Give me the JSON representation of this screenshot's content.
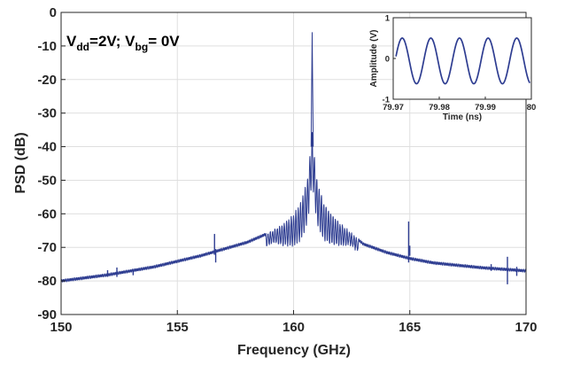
{
  "chart_data": [
    {
      "type": "line",
      "xlabel": "Frequency (GHz)",
      "ylabel": "PSD (dB)",
      "xlim": [
        150,
        170
      ],
      "ylim": [
        -90,
        0
      ],
      "xticks": [
        150,
        155,
        160,
        165,
        170
      ],
      "yticks": [
        0,
        -10,
        -20,
        -30,
        -40,
        -50,
        -60,
        -70,
        -80,
        -90
      ],
      "grid": true,
      "annotation": {
        "prefix_1": "V",
        "sub_1": "dd",
        "mid": "=2V; V",
        "sub_2": "bg",
        "suffix": "= 0V"
      },
      "color": "#2e3d91",
      "envelope": {
        "x": [
          150,
          152,
          154,
          156,
          157,
          158,
          158.5,
          159,
          159.5,
          160,
          160.3,
          160.6,
          160.8,
          161.0,
          161.3,
          161.6,
          162,
          162.5,
          163,
          164,
          165,
          166,
          168,
          170
        ],
        "y": [
          -80,
          -78.2,
          -75.8,
          -72.5,
          -70.5,
          -68.5,
          -67,
          -65.5,
          -63.5,
          -60.5,
          -57,
          -50,
          -36,
          -50,
          -57,
          -60,
          -63,
          -66,
          -69,
          -71.5,
          -73.3,
          -74.6,
          -76,
          -77
        ]
      },
      "carrier": {
        "x": 160.8,
        "y": -6
      },
      "sidebands": {
        "x_from": 158.8,
        "x_to": 162.8,
        "spacing_ghz": 0.1,
        "dip_depth_db": 14
      },
      "spurs": [
        {
          "x": 152,
          "y_min": -78.8,
          "y_max": -76.8
        },
        {
          "x": 152.4,
          "y_min": -78.8,
          "y_max": -76
        },
        {
          "x": 153.1,
          "y_min": -78.3,
          "y_max": -76.6
        },
        {
          "x": 156.6,
          "y_min": -72.2,
          "y_max": -66
        },
        {
          "x": 156.65,
          "y_min": -74.5,
          "y_max": -70.5
        },
        {
          "x": 164.95,
          "y_min": -74.5,
          "y_max": -62.3
        },
        {
          "x": 165.0,
          "y_min": -72.5,
          "y_max": -69.5
        },
        {
          "x": 168.5,
          "y_min": -77,
          "y_max": -75
        },
        {
          "x": 169.2,
          "y_min": -81,
          "y_max": -72.8
        },
        {
          "x": 169.6,
          "y_min": -78.5,
          "y_max": -75.8
        }
      ]
    },
    {
      "type": "line",
      "xlabel": "Time (ns)",
      "ylabel": "Amplitude (V)",
      "xlim": [
        79.97,
        80
      ],
      "ylim": [
        -1,
        1
      ],
      "xticks": [
        79.97,
        79.98,
        79.99,
        80
      ],
      "xtick_labels": [
        "79.97",
        "79.98",
        "79.99",
        "80"
      ],
      "yticks": [
        1,
        0,
        -1
      ],
      "grid": false,
      "color": "#2e3d91",
      "signal": {
        "frequency_ghz": 160.8,
        "max": 0.5,
        "min": -0.62
      }
    }
  ]
}
